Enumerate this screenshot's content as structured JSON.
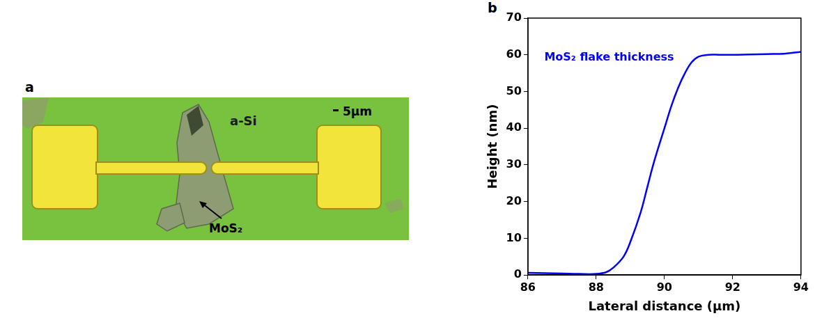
{
  "panel_a": {
    "panel_label": "a",
    "labels": [
      "a-Si",
      "MoS₂"
    ],
    "scale_bar": "5μm"
  },
  "chart_data": {
    "type": "line",
    "panel_label": "b",
    "x_label": "Lateral distance (μm)",
    "y_label": "Height (nm)",
    "annotations": [
      "MoS₂ flake thickness"
    ],
    "x": [
      86,
      86.5,
      87,
      87.5,
      88,
      88.3,
      88.5,
      88.8,
      89,
      89.3,
      89.5,
      89.7,
      90,
      90.2,
      90.4,
      90.6,
      90.8,
      91,
      91.3,
      91.6,
      92,
      92.5,
      93,
      93.5,
      94
    ],
    "values": [
      0.6,
      0.5,
      0.4,
      0.3,
      0.3,
      0.8,
      2,
      5,
      9,
      17,
      24,
      31,
      40,
      46,
      51,
      55,
      58,
      59.5,
      60,
      60,
      60,
      60.1,
      60.2,
      60.3,
      60.8
    ],
    "color": "#0000ff",
    "xlim": [
      86,
      94
    ],
    "xticks": [
      86,
      88,
      90,
      92,
      94
    ],
    "ylim": [
      0,
      70
    ],
    "yticks": [
      0,
      10,
      20,
      30,
      40,
      50,
      60,
      70
    ],
    "grid": false,
    "legend": false
  }
}
